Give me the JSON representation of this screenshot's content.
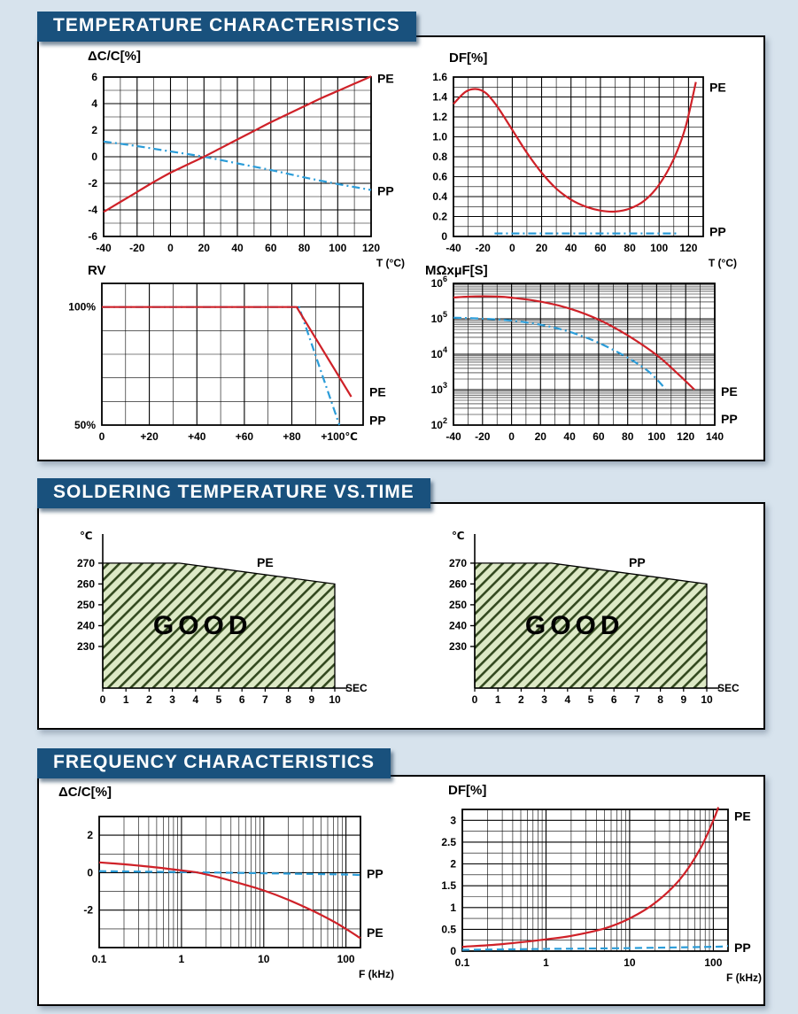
{
  "page": {
    "background": "#d7e3ed"
  },
  "colors": {
    "page_bg": "#d7e3ed",
    "header_bg": "#19517d",
    "header_text": "#ffffff",
    "box_bg": "#ffffff",
    "box_border": "#000000",
    "grid": "#000000",
    "pe": "#cf2128",
    "pp": "#2b9cd8",
    "good_fill": "#dde9c6",
    "good_hatch": "#33491f",
    "good_text": "#2e6136"
  },
  "sections": [
    {
      "id": "temperature",
      "title": "TEMPERATURE  CHARACTERISTICS"
    },
    {
      "id": "soldering",
      "title": "SOLDERING TEMPERATURE VS.TIME"
    },
    {
      "id": "frequency",
      "title": "FREQUENCY CHARACTERISTICS"
    }
  ],
  "chart_data": [
    {
      "id": "dcc-temp",
      "type": "line",
      "title": "ΔC/C[%]",
      "xlabel": "T (°C)",
      "xlim": [
        -40,
        120
      ],
      "xticks": [
        -40,
        -20,
        0,
        20,
        40,
        60,
        80,
        100,
        120
      ],
      "xtick_labels": [
        "-40",
        "-20",
        "0",
        "20",
        "40",
        "60",
        "80",
        "100",
        "120"
      ],
      "x_minor": 10,
      "ylim": [
        -6,
        6
      ],
      "yticks": [
        -6,
        -4,
        -2,
        0,
        2,
        4,
        6
      ],
      "ytick_labels": [
        "-6",
        "-4",
        "-2",
        "0",
        "2",
        "4",
        "6"
      ],
      "y_minor": 1,
      "series": [
        {
          "name": "PP",
          "color": "pp",
          "dash": "dashdot",
          "smooth": true,
          "label_y": -2.55,
          "points": [
            [
              -40,
              1.15
            ],
            [
              -20,
              0.8
            ],
            [
              0,
              0.4
            ],
            [
              20,
              0
            ],
            [
              40,
              -0.5
            ],
            [
              60,
              -1.0
            ],
            [
              80,
              -1.55
            ],
            [
              100,
              -2.05
            ],
            [
              120,
              -2.5
            ]
          ]
        },
        {
          "name": "PE",
          "color": "pe",
          "dash": "solid",
          "smooth": true,
          "label_y": 5.9,
          "points": [
            [
              -40,
              -4.15
            ],
            [
              -30,
              -3.4
            ],
            [
              -20,
              -2.65
            ],
            [
              -10,
              -1.9
            ],
            [
              0,
              -1.2
            ],
            [
              10,
              -0.6
            ],
            [
              20,
              0
            ],
            [
              30,
              0.65
            ],
            [
              40,
              1.3
            ],
            [
              50,
              1.95
            ],
            [
              60,
              2.6
            ],
            [
              70,
              3.2
            ],
            [
              80,
              3.8
            ],
            [
              90,
              4.4
            ],
            [
              100,
              4.95
            ],
            [
              110,
              5.5
            ],
            [
              120,
              6.05
            ]
          ]
        }
      ]
    },
    {
      "id": "df-temp",
      "type": "line",
      "title": "DF[%]",
      "xlabel": "T (°C)",
      "xlim": [
        -40,
        130
      ],
      "xticks": [
        -40,
        -20,
        0,
        20,
        40,
        60,
        80,
        100,
        120
      ],
      "xtick_labels": [
        "-40",
        "-20",
        "0",
        "20",
        "40",
        "60",
        "80",
        "100",
        "120"
      ],
      "x_minor": 10,
      "ylim": [
        0,
        1.6
      ],
      "yticks": [
        0,
        0.2,
        0.4,
        0.6,
        0.8,
        1.0,
        1.2,
        1.4,
        1.6
      ],
      "ytick_labels": [
        "0",
        "0.2",
        "0.4",
        "0.6",
        "0.8",
        "1.0",
        "1.2",
        "1.4",
        "1.6"
      ],
      "y_minor": 0.1,
      "series": [
        {
          "name": "PP",
          "color": "pp",
          "dash": "dashdot",
          "smooth": false,
          "label_y": 0.05,
          "points": [
            [
              -12,
              0.03
            ],
            [
              112,
              0.03
            ]
          ]
        },
        {
          "name": "PE",
          "color": "pe",
          "dash": "solid",
          "smooth": true,
          "label_y": 1.5,
          "points": [
            [
              -40,
              1.33
            ],
            [
              -32,
              1.45
            ],
            [
              -25,
              1.48
            ],
            [
              -18,
              1.44
            ],
            [
              -10,
              1.3
            ],
            [
              0,
              1.07
            ],
            [
              10,
              0.84
            ],
            [
              20,
              0.64
            ],
            [
              30,
              0.48
            ],
            [
              40,
              0.37
            ],
            [
              50,
              0.3
            ],
            [
              60,
              0.26
            ],
            [
              70,
              0.25
            ],
            [
              80,
              0.28
            ],
            [
              90,
              0.36
            ],
            [
              100,
              0.52
            ],
            [
              110,
              0.78
            ],
            [
              118,
              1.1
            ],
            [
              125,
              1.55
            ]
          ]
        }
      ]
    },
    {
      "id": "rv",
      "type": "line",
      "title": "RV",
      "xlabel": "",
      "xlim": [
        0,
        110
      ],
      "xticks": [
        0,
        20,
        40,
        60,
        80,
        100
      ],
      "xtick_labels": [
        "0",
        "+20",
        "+40",
        "+60",
        "+80",
        "+100℃"
      ],
      "x_minor": 10,
      "ylim": [
        50,
        110
      ],
      "yticks": [
        50,
        100
      ],
      "ytick_labels": [
        "50%",
        "100%"
      ],
      "y_minor": 10,
      "series": [
        {
          "name": "PP",
          "color": "pp",
          "dash": "dashdot",
          "smooth": false,
          "label_y": 52,
          "points": [
            [
              0,
              100
            ],
            [
              83,
              100
            ],
            [
              100,
              50
            ]
          ]
        },
        {
          "name": "PE",
          "color": "pe",
          "dash": "solid",
          "smooth": false,
          "label_y": 64,
          "points": [
            [
              0,
              100
            ],
            [
              82,
              100
            ],
            [
              105,
              62
            ]
          ]
        }
      ]
    },
    {
      "id": "ir-temp",
      "type": "line",
      "title": "MΩxµF[S]",
      "xlabel": "",
      "xlim": [
        -40,
        140
      ],
      "xticks": [
        -40,
        -20,
        0,
        20,
        40,
        60,
        80,
        100,
        120,
        140
      ],
      "xtick_labels": [
        "-40",
        "-20",
        "0",
        "20",
        "40",
        "60",
        "80",
        "100",
        "120",
        "140"
      ],
      "x_minor": 10,
      "ylog": true,
      "ylim": [
        100,
        1000000
      ],
      "yticks": [
        100,
        1000,
        10000,
        100000,
        1000000
      ],
      "ytick_labels": [
        "10^2",
        "10^3",
        "10^4",
        "10^5",
        "10^6"
      ],
      "series": [
        {
          "name": "PP",
          "color": "pp",
          "dash": "dashdot",
          "smooth": true,
          "label_y": 150,
          "points": [
            [
              -40,
              108000
            ],
            [
              -20,
              101000
            ],
            [
              0,
              89000
            ],
            [
              20,
              68000
            ],
            [
              40,
              43000
            ],
            [
              60,
              21000
            ],
            [
              80,
              8000
            ],
            [
              95,
              3100
            ],
            [
              106,
              1050
            ]
          ]
        },
        {
          "name": "PE",
          "color": "pe",
          "dash": "solid",
          "smooth": true,
          "label_y": 900,
          "points": [
            [
              -40,
              400000
            ],
            [
              -25,
              430000
            ],
            [
              -10,
              425000
            ],
            [
              0,
              395000
            ],
            [
              20,
              305000
            ],
            [
              40,
              195000
            ],
            [
              60,
              95000
            ],
            [
              80,
              34000
            ],
            [
              100,
              9500
            ],
            [
              115,
              2700
            ],
            [
              126,
              1000
            ]
          ]
        }
      ]
    },
    {
      "id": "solder-pe",
      "type": "area",
      "ylabel": "℃",
      "xlabel": "SEC",
      "xlim": [
        0,
        10
      ],
      "xticks": [
        0,
        1,
        2,
        3,
        4,
        5,
        6,
        7,
        8,
        9,
        10
      ],
      "ylim": [
        210,
        284
      ],
      "yticks": [
        230,
        240,
        250,
        260,
        270
      ],
      "boundary": [
        [
          0,
          270
        ],
        [
          3.3,
          270
        ],
        [
          10,
          260
        ]
      ],
      "curve_label": "PE",
      "area_label": "GOOD"
    },
    {
      "id": "solder-pp",
      "type": "area",
      "ylabel": "℃",
      "xlabel": "SEC",
      "xlim": [
        0,
        10
      ],
      "xticks": [
        0,
        1,
        2,
        3,
        4,
        5,
        6,
        7,
        8,
        9,
        10
      ],
      "ylim": [
        210,
        284
      ],
      "yticks": [
        230,
        240,
        250,
        260,
        270
      ],
      "boundary": [
        [
          0,
          270
        ],
        [
          3.3,
          270
        ],
        [
          10,
          260
        ]
      ],
      "curve_label": "PP",
      "area_label": "GOOD"
    },
    {
      "id": "dcc-freq",
      "type": "line",
      "title": "ΔC/C[%]",
      "xlabel": "F (kHz)",
      "xlog": true,
      "xlim": [
        0.1,
        150
      ],
      "xticks": [
        0.1,
        1,
        10,
        100
      ],
      "xtick_labels": [
        "0.1",
        "1",
        "10",
        "100"
      ],
      "ylim": [
        -4,
        3
      ],
      "yticks": [
        -2,
        0,
        2
      ],
      "ytick_labels": [
        "-2",
        "0",
        "2"
      ],
      "y_minor": 1,
      "series": [
        {
          "name": "PP",
          "color": "pp",
          "dash": "dashed",
          "smooth": true,
          "label_y": -0.05,
          "points": [
            [
              0.1,
              0.08
            ],
            [
              1,
              0.03
            ],
            [
              10,
              -0.03
            ],
            [
              100,
              -0.1
            ],
            [
              150,
              -0.13
            ]
          ]
        },
        {
          "name": "PE",
          "color": "pe",
          "dash": "solid",
          "smooth": true,
          "label_y": -3.2,
          "points": [
            [
              0.1,
              0.55
            ],
            [
              0.2,
              0.45
            ],
            [
              0.5,
              0.28
            ],
            [
              1,
              0.12
            ],
            [
              1.6,
              0
            ],
            [
              3,
              -0.28
            ],
            [
              5,
              -0.55
            ],
            [
              10,
              -0.95
            ],
            [
              20,
              -1.45
            ],
            [
              40,
              -2.05
            ],
            [
              70,
              -2.6
            ],
            [
              100,
              -3.0
            ],
            [
              150,
              -3.5
            ]
          ]
        }
      ]
    },
    {
      "id": "df-freq",
      "type": "line",
      "title": "DF[%]",
      "xlabel": "F (kHz)",
      "xlog": true,
      "xlim": [
        0.1,
        150
      ],
      "xticks": [
        0.1,
        1,
        10,
        100
      ],
      "xtick_labels": [
        "0.1",
        "1",
        "10",
        "100"
      ],
      "ylim": [
        0,
        3.25
      ],
      "yticks": [
        0,
        0.5,
        1,
        1.5,
        2,
        2.5,
        3
      ],
      "ytick_labels": [
        "0",
        "0.5",
        "1",
        "1.5",
        "2",
        "2.5",
        "3"
      ],
      "y_minor": 0.25,
      "series": [
        {
          "name": "PP",
          "color": "pp",
          "dash": "dashed",
          "smooth": true,
          "label_y": 0.08,
          "points": [
            [
              0.1,
              0.03
            ],
            [
              1,
              0.05
            ],
            [
              10,
              0.07
            ],
            [
              100,
              0.1
            ],
            [
              150,
              0.12
            ]
          ]
        },
        {
          "name": "PE",
          "color": "pe",
          "dash": "solid",
          "smooth": true,
          "label_y": 3.1,
          "points": [
            [
              0.1,
              0.1
            ],
            [
              0.3,
              0.16
            ],
            [
              1,
              0.27
            ],
            [
              2,
              0.35
            ],
            [
              5,
              0.52
            ],
            [
              10,
              0.75
            ],
            [
              20,
              1.1
            ],
            [
              40,
              1.65
            ],
            [
              70,
              2.35
            ],
            [
              100,
              3.0
            ],
            [
              115,
              3.3
            ]
          ]
        }
      ]
    }
  ]
}
